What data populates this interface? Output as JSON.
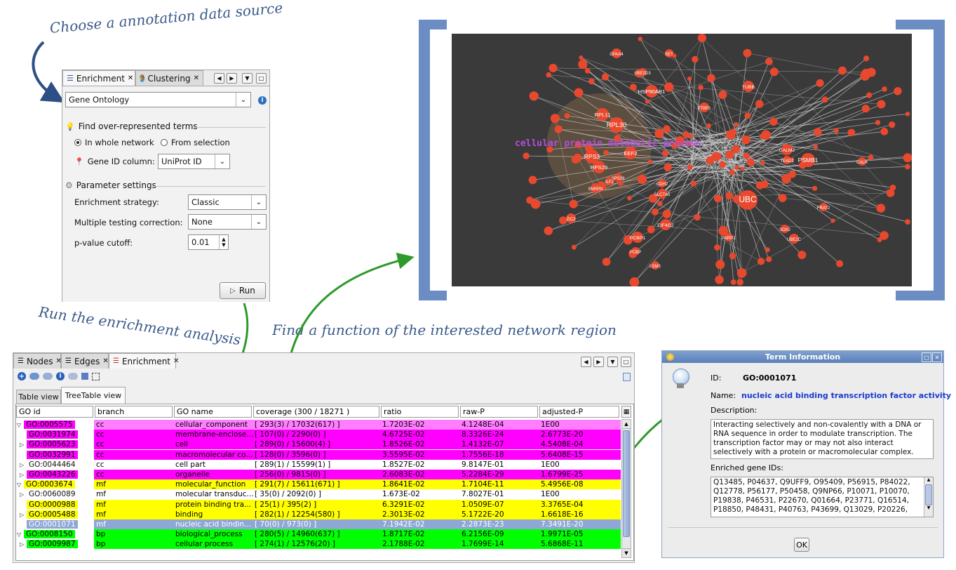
{
  "annotations": {
    "choose_source": "Choose a annotation data source",
    "run_analysis": "Run the enrichment analysis",
    "find_function": "Find a function of the interested network region"
  },
  "colors": {
    "accent_arrow": "#2e9a2b",
    "cc": "#ff00ff",
    "mf": "#ffff00",
    "bp": "#00ff00",
    "selected": "#8ea7d4",
    "frame": "#6c8dc4"
  },
  "enrichment_panel": {
    "tabs": [
      {
        "label": "Enrichment",
        "icon": "list-icon"
      },
      {
        "label": "Clustering",
        "icon": "pie-icon"
      }
    ],
    "data_source": "Gene Ontology",
    "find_over_section": "Find over-represented terms",
    "radio_whole": "In whole network",
    "radio_selection": "From selection",
    "gene_id_label": "Gene ID column:",
    "gene_id_value": "UniProt ID",
    "param_section": "Parameter settings",
    "strategy_label": "Enrichment strategy:",
    "strategy_value": "Classic",
    "correction_label": "Multiple testing correction:",
    "correction_value": "None",
    "pvalue_label": "p-value cutoff:",
    "pvalue_value": "0.01",
    "run_label": "Run"
  },
  "network": {
    "region_label": "cellular protein metabolic process",
    "node_labels": [
      "UBC",
      "RPL30",
      "RPL11",
      "RPS3",
      "RPS29",
      "EEF2",
      "HSP90AB1",
      "PSMB1",
      "CALM2",
      "TUBB",
      "EIF4G2",
      "PCBP1",
      "SNRPN",
      "SLC7A5",
      "ZIC2",
      "UBE2C",
      "SOX2",
      "PTBP1",
      "GPAA4",
      "SET",
      "UBE2D3",
      "RPS28",
      "ILF2",
      "PCBP",
      "LSM3",
      "FRAT2",
      "CDH2",
      "TEAD2",
      "PARP2",
      "CALR"
    ]
  },
  "table_panel": {
    "tabs": [
      {
        "label": "Nodes"
      },
      {
        "label": "Edges"
      },
      {
        "label": "Enrichment"
      }
    ],
    "view_tabs": [
      "Table view",
      "TreeTable view"
    ],
    "columns": [
      "GO id",
      "branch",
      "GO name",
      "coverage (300 / 18271 )",
      "ratio",
      "raw-P",
      "adjusted-P"
    ],
    "rows": [
      {
        "id": "GO:0005575",
        "branch": "cc",
        "name": "cellular_component",
        "coverage": "[ 293(3) / 17032(617) ]",
        "ratio": "1.7203E-02",
        "raw": "4.1248E-04",
        "adj": "1E00"
      },
      {
        "id": "GO:0031974",
        "branch": "cc",
        "name": "membrane-enclose...",
        "coverage": "[ 107(0) / 2290(0) ]",
        "ratio": "4.6725E-02",
        "raw": "8.3326E-24",
        "adj": "2.6773E-20"
      },
      {
        "id": "GO:0005623",
        "branch": "cc",
        "name": "cell",
        "coverage": "[ 289(0) / 15600(4) ]",
        "ratio": "1.8526E-02",
        "raw": "1.4132E-07",
        "adj": "4.5408E-04"
      },
      {
        "id": "GO:0032991",
        "branch": "cc",
        "name": "macromolecular co...",
        "coverage": "[ 128(0) / 3596(0) ]",
        "ratio": "3.5595E-02",
        "raw": "1.7556E-18",
        "adj": "5.6408E-15"
      },
      {
        "id": "GO:0044464",
        "branch": "cc",
        "name": "cell part",
        "coverage": "[ 289(1) / 15599(1) ]",
        "ratio": "1.8527E-02",
        "raw": "9.8147E-01",
        "adj": "1E00"
      },
      {
        "id": "GO:0043226",
        "branch": "cc",
        "name": "organelle",
        "coverage": "[ 256(0) / 9815(0) ]",
        "ratio": "2.6083E-02",
        "raw": "5.2284E-29",
        "adj": "1.6799E-25"
      },
      {
        "id": "GO:0003674",
        "branch": "mf",
        "name": "molecular_function",
        "coverage": "[ 291(7) / 15611(671) ]",
        "ratio": "1.8641E-02",
        "raw": "1.7104E-11",
        "adj": "5.4956E-08"
      },
      {
        "id": "GO:0060089",
        "branch": "mf",
        "name": "molecular transduc...",
        "coverage": "[ 35(0) / 2092(0) ]",
        "ratio": "1.673E-02",
        "raw": "7.8027E-01",
        "adj": "1E00"
      },
      {
        "id": "GO:0000988",
        "branch": "mf",
        "name": "protein binding tra...",
        "coverage": "[ 25(1) / 395(2) ]",
        "ratio": "6.3291E-02",
        "raw": "1.0509E-07",
        "adj": "3.3765E-04"
      },
      {
        "id": "GO:0005488",
        "branch": "mf",
        "name": "binding",
        "coverage": "[ 282(1) / 12254(580) ]",
        "ratio": "2.3013E-02",
        "raw": "5.1722E-20",
        "adj": "1.6618E-16"
      },
      {
        "id": "GO:0001071",
        "branch": "mf",
        "name": "nucleic acid bindin...",
        "coverage": "[ 70(0) / 973(0) ]",
        "ratio": "7.1942E-02",
        "raw": "2.2873E-23",
        "adj": "7.3491E-20"
      },
      {
        "id": "GO:0008150",
        "branch": "bp",
        "name": "biological_process",
        "coverage": "[ 280(5) / 14960(637) ]",
        "ratio": "1.8717E-02",
        "raw": "6.2156E-09",
        "adj": "1.9971E-05"
      },
      {
        "id": "GO:0009987",
        "branch": "bp",
        "name": "cellular process",
        "coverage": "[ 274(1) / 12576(20) ]",
        "ratio": "2.1788E-02",
        "raw": "1.7699E-14",
        "adj": "5.6868E-11"
      }
    ]
  },
  "term_dialog": {
    "title": "Term Information",
    "id_label": "ID:",
    "id_value": "GO:0001071",
    "name_label": "Name:",
    "name_value": "nucleic acid binding transcription factor activity",
    "description_label": "Description:",
    "description": "Interacting selectively and non-covalently with a DNA or RNA sequence in order to modulate transcription. The transcription factor may or may not also interact selectively with a protein or macromolecular complex.",
    "genes_label": "Enriched gene IDs:",
    "genes": "Q13485, P04637, Q9UFF9, O95409, P56915, P84022, Q12778, P56177, P50458, Q9NP66, P10071, P10070, P19838, P46531, P22670, Q01664, P23771, Q16514, P18850, P48431, P40763, P43699, Q13029, P20226,",
    "ok_label": "OK"
  }
}
